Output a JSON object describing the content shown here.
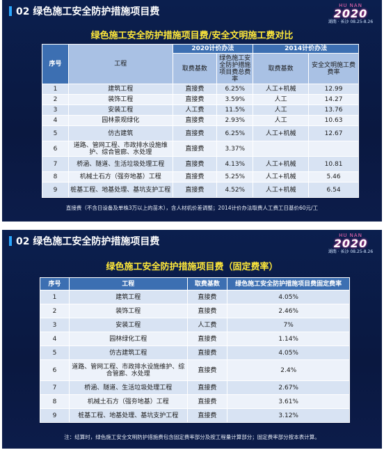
{
  "slide1": {
    "header_title": "02 绿色施工安全防护措施项目费",
    "logo": {
      "top": "HU NAN",
      "year": "2020",
      "sub": "湖南 · 长沙  08.25-8.26"
    },
    "subtitle": "绿色施工安全防护措施项目费/安全文明施工费对比",
    "table": {
      "group_2020": "2020计价办法",
      "group_2014": "2014计价办法",
      "col_no": "序号",
      "col_project": "工程",
      "col_base_2020": "取费基数",
      "col_rate_2020": "绿色施工安全防护措施项目费总费率",
      "col_base_2014": "取费基数",
      "col_rate_2014": "安全文明施工费费率",
      "rows": [
        {
          "no": "1",
          "project": "建筑工程",
          "base2020": "直接费",
          "rate2020": "6.25%",
          "base2014": "人工+机械",
          "rate2014": "12.99"
        },
        {
          "no": "2",
          "project": "装饰工程",
          "base2020": "直接费",
          "rate2020": "3.59%",
          "base2014": "人工",
          "rate2014": "14.27"
        },
        {
          "no": "3",
          "project": "安装工程",
          "base2020": "人工费",
          "rate2020": "11.5%",
          "base2014": "人工",
          "rate2014": "13.76"
        },
        {
          "no": "4",
          "project": "园林景观绿化",
          "base2020": "直接费",
          "rate2020": "2.93%",
          "base2014": "人工",
          "rate2014": "10.63"
        },
        {
          "no": "5",
          "project": "仿古建筑",
          "base2020": "直接费",
          "rate2020": "6.25%",
          "base2014": "人工+机械",
          "rate2014": "12.67"
        },
        {
          "no": "6",
          "project": "道路、管网工程、市政排水设施维护、综合管廊、水处理",
          "base2020": "直接费",
          "rate2020": "3.37%",
          "base2014": "",
          "rate2014": ""
        },
        {
          "no": "7",
          "project": "桥涵、隧道、生活垃圾处理工程",
          "base2020": "直接费",
          "rate2020": "4.13%",
          "base2014": "人工+机械",
          "rate2014": "10.81"
        },
        {
          "no": "8",
          "project": "机械土石方（强夯地基）工程",
          "base2020": "直接费",
          "rate2020": "5.25%",
          "base2014": "人工+机械",
          "rate2014": "5.46"
        },
        {
          "no": "9",
          "project": "桩基工程、地基处理、基坑支护工程",
          "base2020": "直接费",
          "rate2020": "4.52%",
          "base2014": "人工+机械",
          "rate2014": "6.54"
        }
      ]
    },
    "note": "直接费（不含日设备及单株3万以上的苗木），含人材机价差调整；2014计价办法取费人工费工日基价60元/工"
  },
  "slide2": {
    "header_title": "02 绿色施工安全防护措施项目费",
    "logo": {
      "top": "HU NAN",
      "year": "2020",
      "sub": "湖南 · 长沙  08.25-8.26"
    },
    "subtitle": "绿色施工安全防护措施项目费（固定费率）",
    "table": {
      "col_no": "序号",
      "col_project": "工程",
      "col_base": "取费基数",
      "col_rate": "绿色施工安全防护措施项目费固定费率",
      "rows": [
        {
          "no": "1",
          "project": "建筑工程",
          "base": "直接费",
          "rate": "4.05%"
        },
        {
          "no": "2",
          "project": "装饰工程",
          "base": "直接费",
          "rate": "2.46%"
        },
        {
          "no": "3",
          "project": "安装工程",
          "base": "人工费",
          "rate": "7%"
        },
        {
          "no": "4",
          "project": "园林绿化工程",
          "base": "直接费",
          "rate": "1.14%"
        },
        {
          "no": "5",
          "project": "仿古建筑工程",
          "base": "直接费",
          "rate": "4.05%"
        },
        {
          "no": "6",
          "project": "道路、管网工程、市政排水设施维护、综合管廊、水处理",
          "base": "直接费",
          "rate": "2.4%"
        },
        {
          "no": "7",
          "project": "桥涵、隧道、生活垃圾处理工程",
          "base": "直接费",
          "rate": "2.67%"
        },
        {
          "no": "8",
          "project": "机械土石方（强夯地基）工程",
          "base": "直接费",
          "rate": "3.61%"
        },
        {
          "no": "9",
          "project": "桩基工程、地基处理、基坑支护工程",
          "base": "直接费",
          "rate": "3.12%"
        }
      ]
    },
    "note": "注：结算时，绿色施工安全文明防护措施费包含固定费率部分及按工程量计算部分；固定费率部分按本表计算。"
  },
  "colors": {
    "background": "#0b1f4e",
    "accent_title": "#ffe83a",
    "table_header": "#3c6fb2",
    "row_a": "#d8e3f3",
    "row_b": "#edf2fa"
  }
}
